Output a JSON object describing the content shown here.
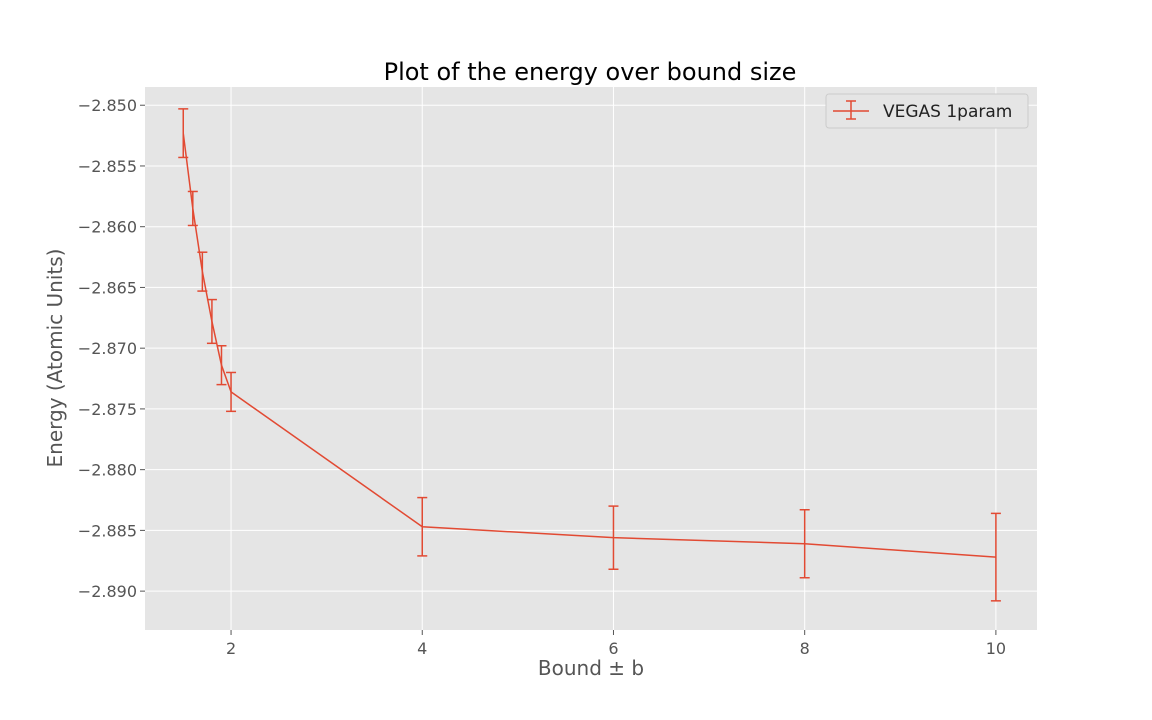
{
  "chart_data": {
    "type": "line",
    "title": "Plot of the energy over bound size",
    "xlabel": "Bound ± b",
    "ylabel": "Energy (Atomic Units)",
    "xlim": [
      1.1,
      10.43
    ],
    "ylim": [
      -2.8932,
      -2.8485
    ],
    "xticks": [
      2,
      4,
      6,
      8,
      10
    ],
    "yticks": [
      -2.85,
      -2.855,
      -2.86,
      -2.865,
      -2.87,
      -2.875,
      -2.88,
      -2.885,
      -2.89
    ],
    "ytick_labels": [
      "−2.850",
      "−2.855",
      "−2.860",
      "−2.865",
      "−2.870",
      "−2.875",
      "−2.880",
      "−2.885",
      "−2.890"
    ],
    "grid": true,
    "background": "#e5e5e5",
    "legend_position": "top-right",
    "series": [
      {
        "name": "VEGAS 1param",
        "color": "#e24a33",
        "x": [
          1.5,
          1.6,
          1.7,
          1.8,
          1.9,
          2.0,
          4.0,
          6.0,
          8.0,
          10.0
        ],
        "y": [
          -2.8523,
          -2.8585,
          -2.8637,
          -2.8678,
          -2.8714,
          -2.8736,
          -2.8847,
          -2.8856,
          -2.8861,
          -2.8872
        ],
        "yerr": [
          0.002,
          0.0014,
          0.0016,
          0.0018,
          0.0016,
          0.0016,
          0.0024,
          0.0026,
          0.0028,
          0.0036
        ]
      }
    ]
  }
}
